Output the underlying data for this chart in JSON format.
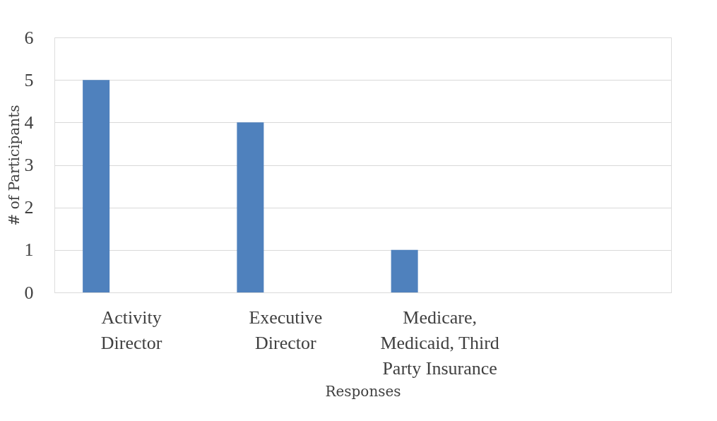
{
  "chart_data": {
    "type": "bar",
    "xlabel": "Responses",
    "ylabel": "# of Participants",
    "categories": [
      "Activity\nDirector",
      "Executive\nDirector",
      "Medicare,\nMedicaid, Third\nParty Insurance",
      null
    ],
    "series": [
      {
        "color": "#4f81bd",
        "values": [
          5,
          4,
          1,
          null
        ]
      }
    ],
    "ylim": [
      0,
      6
    ],
    "yticks": [
      0,
      1,
      2,
      3,
      4,
      5,
      6
    ],
    "grid": "y",
    "legend": false
  }
}
